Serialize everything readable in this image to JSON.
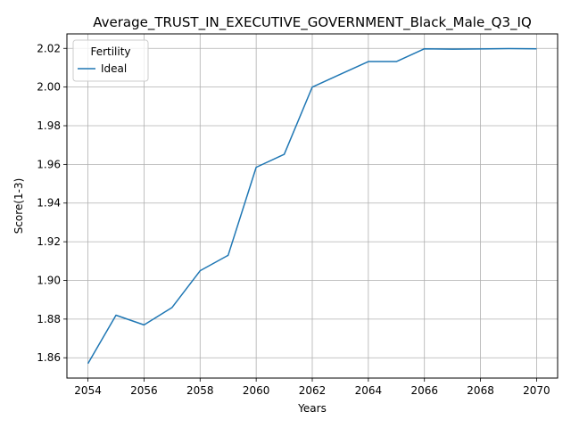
{
  "chart_data": {
    "type": "line",
    "title": "Average_TRUST_IN_EXECUTIVE_GOVERNMENT_Black_Male_Q3_IQ",
    "xlabel": "Years",
    "ylabel": "Score(1-3)",
    "xlim": [
      2053.25,
      2070.75
    ],
    "ylim": [
      1.8495,
      2.0275
    ],
    "x_ticks": [
      2054,
      2056,
      2058,
      2060,
      2062,
      2064,
      2066,
      2068,
      2070
    ],
    "y_ticks": [
      1.86,
      1.88,
      1.9,
      1.92,
      1.94,
      1.96,
      1.98,
      2.0,
      2.02
    ],
    "x_tick_labels": [
      "2054",
      "2056",
      "2058",
      "2060",
      "2062",
      "2064",
      "2066",
      "2068",
      "2070"
    ],
    "y_tick_labels": [
      "1.86",
      "1.88",
      "1.90",
      "1.92",
      "1.94",
      "1.96",
      "1.98",
      "2.00",
      "2.02"
    ],
    "grid": true,
    "legend": {
      "title": "Fertility",
      "placement": "top-left"
    },
    "series": [
      {
        "name": "Ideal",
        "color": "#1f77b4",
        "x": [
          2054,
          2055,
          2056,
          2057,
          2058,
          2059,
          2060,
          2061,
          2062,
          2063,
          2064,
          2065,
          2066,
          2067,
          2068,
          2069,
          2070
        ],
        "y": [
          1.857,
          1.882,
          1.877,
          1.886,
          1.905,
          1.913,
          1.9585,
          1.9652,
          2.0,
          2.0066,
          2.0132,
          2.0132,
          2.0198,
          2.0196,
          2.0197,
          2.0199,
          2.0198
        ]
      }
    ]
  }
}
